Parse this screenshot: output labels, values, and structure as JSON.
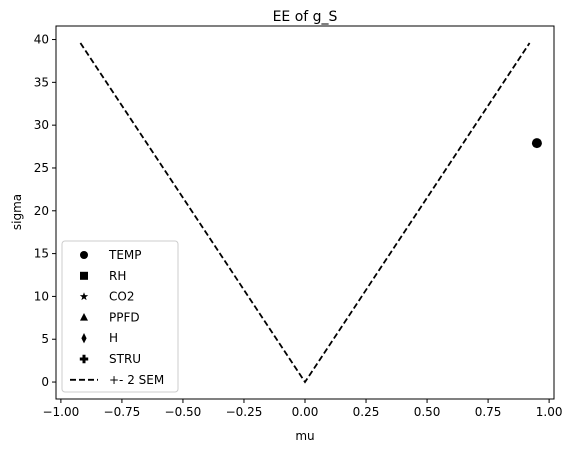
{
  "chart_data": {
    "type": "scatter",
    "title": "EE of g_S",
    "xlabel": "mu",
    "ylabel": "sigma",
    "xlim": [
      -1.02,
      1.02
    ],
    "ylim": [
      -1.98,
      41.58
    ],
    "xticks": [
      -1.0,
      -0.75,
      -0.5,
      -0.25,
      0.0,
      0.25,
      0.5,
      0.75,
      1.0
    ],
    "xtick_labels": [
      "−1.00",
      "−0.75",
      "−0.50",
      "−0.25",
      "0.00",
      "0.25",
      "0.50",
      "0.75",
      "1.00"
    ],
    "yticks": [
      0,
      5,
      10,
      15,
      20,
      25,
      30,
      35,
      40
    ],
    "ytick_labels": [
      "0",
      "5",
      "10",
      "15",
      "20",
      "25",
      "30",
      "35",
      "40"
    ],
    "grid": false,
    "legend_placement": "lower-left",
    "series": [
      {
        "name": "TEMP",
        "marker": "circle",
        "color": "#000000",
        "points": [
          [
            0.95,
            27.9
          ]
        ]
      },
      {
        "name": "RH",
        "marker": "square",
        "color": "#000000",
        "points": []
      },
      {
        "name": "CO2",
        "marker": "star",
        "color": "#000000",
        "points": []
      },
      {
        "name": "PPFD",
        "marker": "triangle",
        "color": "#000000",
        "points": []
      },
      {
        "name": "H",
        "marker": "thin-diamond",
        "color": "#000000",
        "points": []
      },
      {
        "name": "STRU",
        "marker": "plus",
        "color": "#000000",
        "points": []
      }
    ],
    "reference_line": {
      "name": "+- 2 SEM",
      "style": "dashed",
      "color": "#000000",
      "points": [
        [
          -0.92,
          39.6
        ],
        [
          0.0,
          0.0
        ],
        [
          0.92,
          39.6
        ]
      ]
    }
  }
}
